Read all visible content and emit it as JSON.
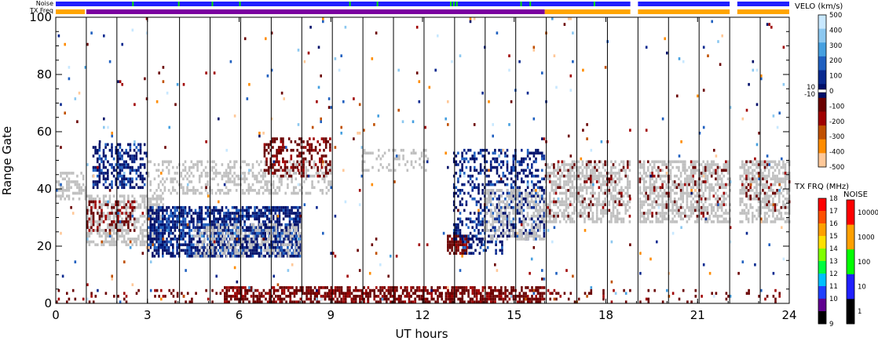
{
  "chart_data": {
    "type": "heatmap",
    "xlabel": "UT hours",
    "ylabel": "Range Gate",
    "xlim": [
      0,
      24
    ],
    "ylim": [
      0,
      100
    ],
    "x_ticks": [
      "0",
      "3",
      "6",
      "9",
      "12",
      "15",
      "18",
      "21",
      "24"
    ],
    "y_ticks": [
      "0",
      "20",
      "40",
      "60",
      "80",
      "100"
    ],
    "top_bar_labels": {
      "noise": "Noise",
      "tx_freq": "TX Freq"
    },
    "scan_boundaries_ut": [
      1.0,
      2.0,
      3.0,
      4.05,
      5.05,
      6.05,
      7.05,
      8.05,
      9.05,
      10.05,
      11.05,
      12.05,
      13.05,
      14.05,
      15.05,
      16.05,
      17.05,
      18.05,
      19.05,
      20.05,
      21.05,
      22.05,
      23.05
    ],
    "data_gaps_ut": [
      [
        18.8,
        19.05
      ],
      [
        22.05,
        22.3
      ]
    ],
    "tx_freq_bands": [
      {
        "start": 0.0,
        "end": 0.95,
        "color": "#ffa500"
      },
      {
        "start": 1.0,
        "end": 16.0,
        "color": "#7a00a0"
      },
      {
        "start": 16.0,
        "end": 18.8,
        "color": "#ffa500"
      },
      {
        "start": 19.05,
        "end": 22.05,
        "color": "#ffa500"
      },
      {
        "start": 22.3,
        "end": 24.0,
        "color": "#ffa500"
      }
    ],
    "noise_bands": [
      {
        "start": 0.0,
        "end": 18.8,
        "color": "#2020ff"
      },
      {
        "start": 19.05,
        "end": 22.05,
        "color": "#2020ff"
      },
      {
        "start": 22.3,
        "end": 24.0,
        "color": "#2020ff"
      }
    ],
    "noise_spikes_ut": [
      2.5,
      4.0,
      5.1,
      6.0,
      9.6,
      10.5,
      12.9,
      13.0,
      13.1,
      15.2,
      15.5,
      17.6
    ],
    "velocity_scale": {
      "title": "VELO (km/s)",
      "labels": [
        "500",
        "400",
        "300",
        "200",
        "100",
        "0",
        "-100",
        "-200",
        "-300",
        "-400",
        "-500"
      ],
      "zero_labels": [
        "10",
        "-10"
      ],
      "colors": [
        "#c8e8ff",
        "#8cc8f0",
        "#46a0e0",
        "#2060c0",
        "#0a2a90",
        "#00106a",
        "#6a0000",
        "#a00000",
        "#c05000",
        "#ff8c00",
        "#ffc898"
      ]
    },
    "txfreq_scale": {
      "title": "TX FRQ (MHz)",
      "labels": [
        "18",
        "17",
        "16",
        "15",
        "14",
        "13",
        "12",
        "11",
        "10",
        "9"
      ],
      "colors": [
        "#ff0000",
        "#ff5000",
        "#ffa000",
        "#ffe000",
        "#80ff00",
        "#00ff40",
        "#00c0ff",
        "#2040ff",
        "#600090",
        "#000000"
      ]
    },
    "noise_scale": {
      "title": "NOISE",
      "labels": [
        "10000",
        "1000",
        "100",
        "10",
        "1"
      ],
      "colors": [
        "#ff0000",
        "#ffa000",
        "#00ff00",
        "#2020ff",
        "#000000"
      ]
    },
    "regions": [
      {
        "name": "ground-scatter-early",
        "kind": "ground",
        "x0": 0.0,
        "x1": 1.0,
        "y0": 36,
        "y1": 46,
        "density": 0.5
      },
      {
        "name": "ground-scatter-band-0-3",
        "kind": "ground",
        "x0": 1.0,
        "x1": 3.5,
        "y0": 20,
        "y1": 38,
        "density": 0.55
      },
      {
        "name": "negative-vel-patch-1-3",
        "kind": "neg",
        "x0": 1.0,
        "x1": 2.6,
        "y0": 25,
        "y1": 36,
        "density": 0.35
      },
      {
        "name": "positive-vel-patch-1-3",
        "kind": "pos",
        "x0": 1.2,
        "x1": 3.0,
        "y0": 40,
        "y1": 56,
        "density": 0.5
      },
      {
        "name": "positive-vel-main-3-8",
        "kind": "pos",
        "x0": 3.0,
        "x1": 8.0,
        "y0": 16,
        "y1": 34,
        "density": 0.75
      },
      {
        "name": "ground-main-3-8",
        "kind": "ground",
        "x0": 4.5,
        "x1": 8.0,
        "y0": 16,
        "y1": 28,
        "density": 0.35
      },
      {
        "name": "ground-scatter-3-9",
        "kind": "ground",
        "x0": 3.0,
        "x1": 9.0,
        "y0": 38,
        "y1": 50,
        "density": 0.35
      },
      {
        "name": "negative-vel-7-9",
        "kind": "neg",
        "x0": 6.8,
        "x1": 9.0,
        "y0": 44,
        "y1": 58,
        "density": 0.35
      },
      {
        "name": "ground-scatter-10-12",
        "kind": "ground",
        "x0": 10.0,
        "x1": 12.2,
        "y0": 46,
        "y1": 54,
        "density": 0.2
      },
      {
        "name": "negative-vel-13",
        "kind": "neg",
        "x0": 12.8,
        "x1": 13.5,
        "y0": 17,
        "y1": 24,
        "density": 0.75
      },
      {
        "name": "positive-vel-13-14",
        "kind": "pos",
        "x0": 13.3,
        "x1": 14.6,
        "y0": 17,
        "y1": 24,
        "density": 0.35
      },
      {
        "name": "positive-vel-diag-13-16",
        "kind": "pos",
        "x0": 13.0,
        "x1": 16.0,
        "y0": 22,
        "y1": 54,
        "density": 0.4
      },
      {
        "name": "ground-diag-14-16",
        "kind": "ground",
        "x0": 14.0,
        "x1": 16.0,
        "y0": 22,
        "y1": 40,
        "density": 0.45
      },
      {
        "name": "ground-band-16-24",
        "kind": "ground",
        "x0": 16.0,
        "x1": 24.0,
        "y0": 28,
        "y1": 50,
        "density": 0.55
      },
      {
        "name": "negative-sparse-16-24",
        "kind": "neg",
        "x0": 16.0,
        "x1": 24.0,
        "y0": 30,
        "y1": 50,
        "density": 0.08
      },
      {
        "name": "negative-near-range",
        "kind": "neg",
        "x0": 5.5,
        "x1": 16.0,
        "y0": 0,
        "y1": 6,
        "density": 0.6
      },
      {
        "name": "negative-near-range-sparse",
        "kind": "neg",
        "x0": 0.0,
        "x1": 24.0,
        "y0": 0,
        "y1": 5,
        "density": 0.12
      },
      {
        "name": "scattered-noise",
        "kind": "mix",
        "x0": 0.0,
        "x1": 24.0,
        "y0": 0,
        "y1": 100,
        "density": 0.012
      }
    ]
  }
}
